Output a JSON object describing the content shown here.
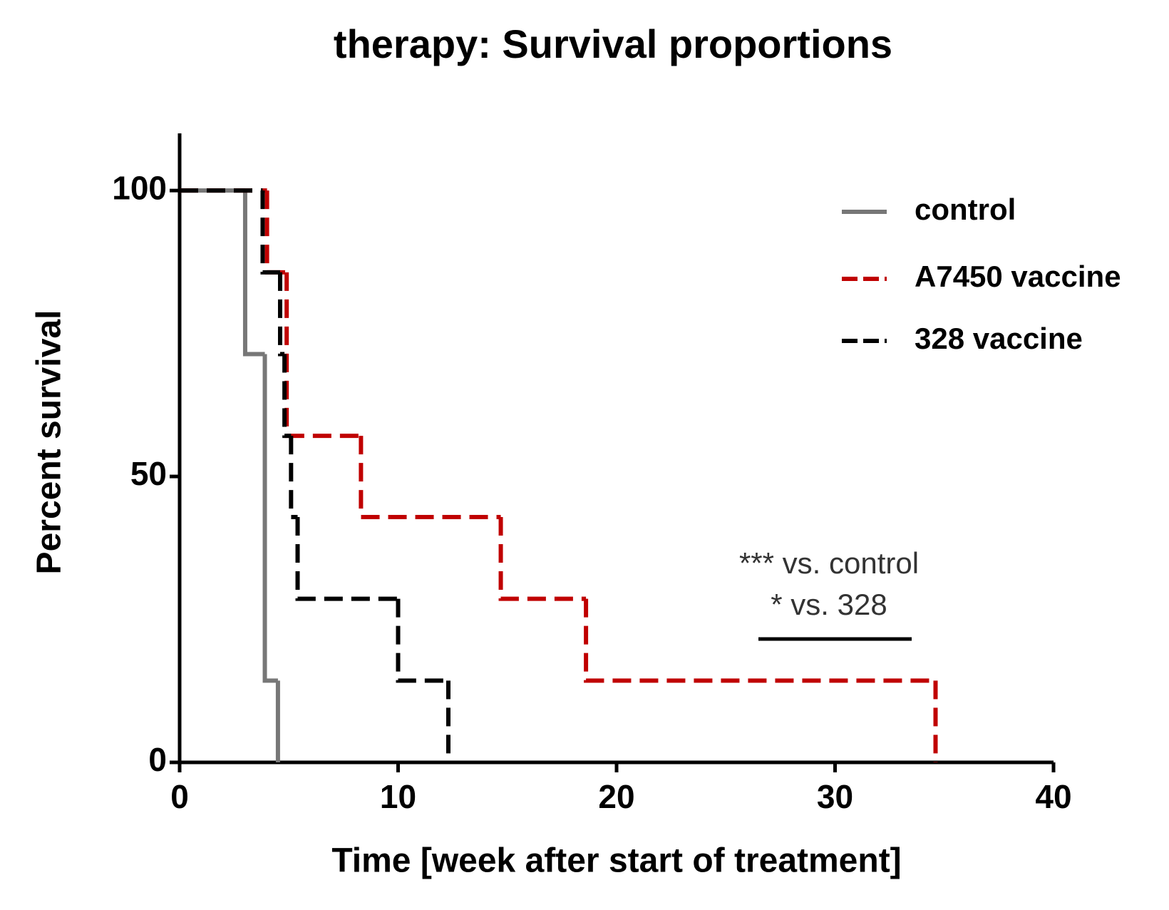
{
  "chart_data": {
    "type": "survival-step",
    "title": "therapy: Survival proportions",
    "x_label": "Time [week after start of treatment]",
    "y_label": "Percent survival",
    "xlim": [
      0,
      40
    ],
    "xticks": [
      0,
      10,
      20,
      30,
      40
    ],
    "ylim": [
      0,
      110
    ],
    "yticks": [
      0,
      50,
      100
    ],
    "legend": "top-right",
    "annotations": [
      "*** vs. control",
      "* vs. 328"
    ],
    "series": [
      {
        "name": "control",
        "color": "#777777",
        "dash": false,
        "x": [
          0,
          3,
          3.9,
          4.5
        ],
        "values": [
          100,
          71.4,
          14.3,
          0
        ]
      },
      {
        "name": "A7450 vaccine",
        "color": "#c00000",
        "dash": true,
        "x": [
          0,
          4,
          4.9,
          8.3,
          14.7,
          18.6,
          34.6
        ],
        "values": [
          100,
          85.7,
          57.1,
          42.9,
          28.6,
          14.3,
          0
        ]
      },
      {
        "name": "328 vaccine",
        "color": "#000000",
        "dash": true,
        "x": [
          0,
          3.8,
          4.6,
          4.8,
          5.1,
          5.4,
          10,
          12.3
        ],
        "values": [
          100,
          85.7,
          71.4,
          57.1,
          42.9,
          28.6,
          14.3,
          0
        ]
      }
    ]
  }
}
